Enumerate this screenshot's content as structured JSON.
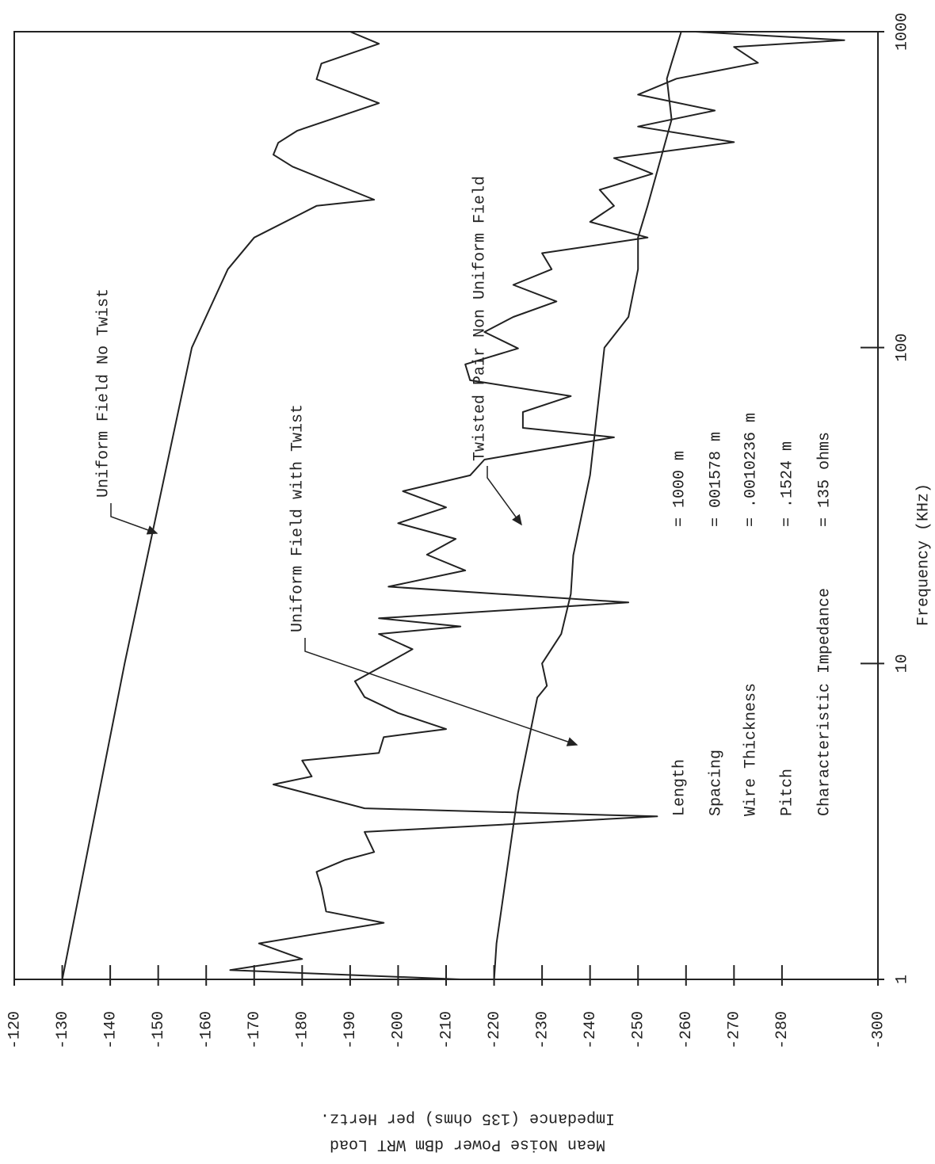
{
  "chart_data": {
    "type": "line",
    "x_label": "Frequency (KHz)",
    "y_label": [
      "Mean Noise Power dBm WRT Load",
      "Impedance (135 ohms) per Hertz."
    ],
    "xscale": "log",
    "xlim": [
      1,
      1000
    ],
    "xticks": [
      1,
      10,
      100,
      1000
    ],
    "ylim": [
      -120,
      -300
    ],
    "yticks": [
      -120,
      -130,
      -140,
      -150,
      -160,
      -170,
      -180,
      -190,
      -200,
      -210,
      -220,
      -230,
      -240,
      -250,
      -260,
      -270,
      -280,
      -300
    ],
    "series": [
      {
        "name": "Uniform Field No Twist",
        "color": "#222222",
        "x": [
          1,
          10,
          100,
          177,
          223,
          281,
          294,
          374,
          408,
          445,
          486,
          594,
          707,
          793,
          916,
          1000
        ],
        "values": [
          -130,
          -143,
          -157,
          -164.5,
          -170,
          -183,
          -195,
          -178,
          -174,
          -175,
          -179,
          -196,
          -183,
          -184,
          -196,
          -190
        ]
      },
      {
        "name": "Uniform Field with Twist",
        "color": "#222222",
        "x": [
          1,
          1.3,
          3.9,
          7.8,
          8.5,
          10,
          12.4,
          16.6,
          22,
          39.5,
          100,
          125,
          177,
          223,
          281,
          527,
          710,
          797,
          1000
        ],
        "values": [
          -220,
          -220.5,
          -225,
          -229,
          -231,
          -230,
          -234,
          -236,
          -236.5,
          -240,
          -243,
          -248,
          -250,
          -250,
          -252,
          -257,
          -256,
          -257,
          -259
        ]
      },
      {
        "name": "Twisted Pair Non Uniform Field",
        "color": "#222222",
        "x": [
          1,
          1.07,
          1.16,
          1.3,
          1.51,
          1.64,
          1.95,
          2.19,
          2.39,
          2.53,
          2.93,
          3.28,
          3.48,
          4.14,
          4.39,
          4.93,
          5.21,
          5.85,
          6.2,
          6.97,
          7.83,
          8.79,
          9.87,
          11.1,
          12.4,
          13.1,
          13.9,
          15.6,
          17.5,
          19.7,
          22.1,
          24.8,
          27.8,
          31.2,
          35.1,
          39.4,
          44.2,
          52,
          55.7,
          62.5,
          70.2,
          78.8,
          88.5,
          99.4,
          112,
          125,
          140,
          158,
          177,
          199,
          223,
          250,
          281,
          316,
          355,
          398,
          447,
          501,
          563,
          632,
          710,
          797,
          895,
          940,
          1000
        ],
        "values": [
          -213,
          -165,
          -180,
          -171,
          -197,
          -185,
          -184,
          -183,
          -189,
          -195,
          -193,
          -254,
          -193,
          -174,
          -182,
          -180,
          -196,
          -197,
          -210,
          -200,
          -193,
          -191,
          -197,
          -203,
          -196,
          -213,
          -196,
          -248,
          -198,
          -214,
          -206,
          -212,
          -200,
          -210,
          -201,
          -215,
          -218,
          -245,
          -226,
          -226,
          -236,
          -215,
          -214,
          -225,
          -218,
          -224,
          -233,
          -224,
          -232,
          -230,
          -252,
          -240,
          -245,
          -242,
          -253,
          -245,
          -270,
          -250,
          -266,
          -250,
          -258,
          -275,
          -270,
          -293,
          -262
        ]
      }
    ],
    "annotations": [
      "Uniform Field No Twist",
      "Uniform Field with Twist",
      "Twisted Pair Non Uniform Field"
    ],
    "parameters": [
      {
        "name": "Length",
        "value": "= 1000 m"
      },
      {
        "name": "Spacing",
        "value": "= 001578 m"
      },
      {
        "name": "Wire Thickness",
        "value": "= .0010236 m"
      },
      {
        "name": "Pitch",
        "value": "= .1524 m"
      },
      {
        "name": "Characteristic Impedance",
        "value": "= 135 ohms"
      }
    ]
  }
}
